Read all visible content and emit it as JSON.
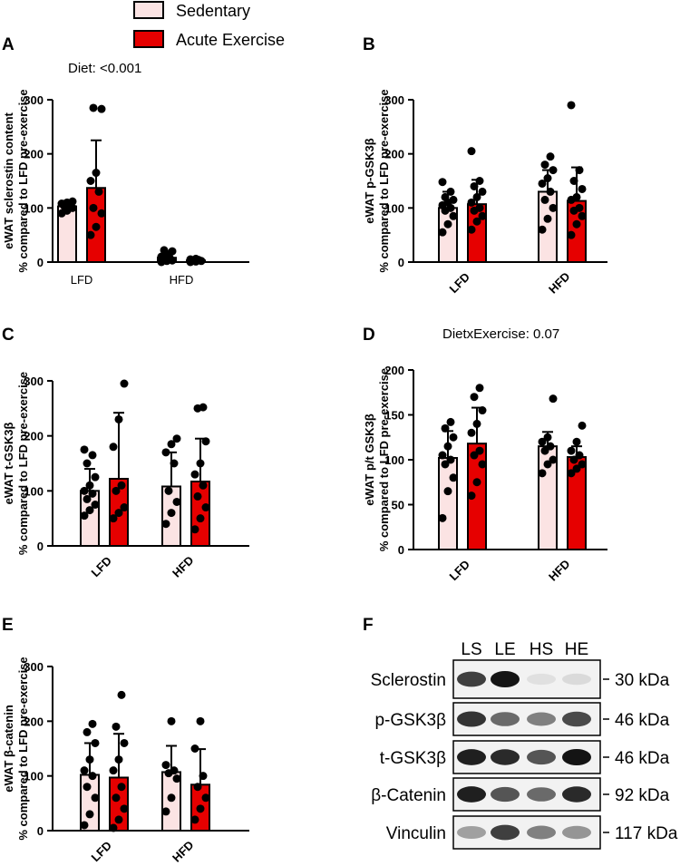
{
  "legend": {
    "items": [
      {
        "label": "Sedentary",
        "color": "#fbe3e3"
      },
      {
        "label": "Acute Exercise",
        "color": "#e60000"
      }
    ]
  },
  "colors": {
    "sedentary": "#fbe3e3",
    "exercise": "#e60000",
    "axis": "#000000"
  },
  "chart_data": [
    {
      "panel": "A",
      "type": "bar",
      "annotation": "Diet: <0.001",
      "ylabel_lines": [
        "eWAT sclerostin content",
        "% compared to LFD pre-exercise"
      ],
      "ylim": [
        0,
        300
      ],
      "yticks": [
        "0",
        "100",
        "200",
        "300"
      ],
      "categories": [
        "LFD",
        "HFD"
      ],
      "series": [
        {
          "name": "Sedentary",
          "values": [
            103,
            8
          ],
          "errors": [
            10,
            10
          ],
          "points": [
            [
              90,
              95,
              100,
              103,
              105,
              108,
              110,
              112
            ],
            [
              0,
              2,
              3,
              5,
              8,
              10,
              15,
              20,
              22
            ]
          ]
        },
        {
          "name": "Acute Exercise",
          "values": [
            137,
            3
          ],
          "errors": [
            88,
            3
          ],
          "points": [
            [
              50,
              65,
              90,
              100,
              130,
              150,
              165,
              283,
              285
            ],
            [
              0,
              1,
              2,
              3,
              4,
              5,
              6
            ]
          ]
        }
      ]
    },
    {
      "panel": "B",
      "type": "bar",
      "annotation": "",
      "ylabel_lines": [
        "eWAT p-GSK3β",
        "% compared to LFD pre-exercise"
      ],
      "ylim": [
        0,
        300
      ],
      "yticks": [
        "0",
        "100",
        "200",
        "300"
      ],
      "categories": [
        "LFD",
        "HFD"
      ],
      "series": [
        {
          "name": "Sedentary",
          "values": [
            100,
            130
          ],
          "errors": [
            30,
            40
          ],
          "points": [
            [
              55,
              70,
              85,
              95,
              100,
              105,
              110,
              115,
              120,
              130,
              148
            ],
            [
              60,
              80,
              100,
              115,
              130,
              145,
              155,
              170,
              180,
              195
            ]
          ]
        },
        {
          "name": "Acute Exercise",
          "values": [
            107,
            113
          ],
          "errors": [
            45,
            62
          ],
          "points": [
            [
              60,
              75,
              85,
              95,
              100,
              110,
              120,
              130,
              140,
              150,
              205
            ],
            [
              50,
              70,
              85,
              95,
              100,
              115,
              120,
              135,
              150,
              170,
              290
            ]
          ]
        }
      ]
    },
    {
      "panel": "C",
      "type": "bar",
      "annotation": "",
      "ylabel_lines": [
        "eWAT t-GSK3β",
        "% compared to LFD pre-exercise"
      ],
      "ylim": [
        0,
        300
      ],
      "yticks": [
        "0",
        "100",
        "200",
        "300"
      ],
      "categories": [
        "LFD",
        "HFD"
      ],
      "series": [
        {
          "name": "Sedentary",
          "values": [
            100,
            108
          ],
          "errors": [
            40,
            62
          ],
          "points": [
            [
              55,
              65,
              75,
              85,
              95,
              100,
              110,
              125,
              150,
              165,
              175
            ],
            [
              40,
              60,
              80,
              100,
              150,
              170,
              185,
              195
            ]
          ]
        },
        {
          "name": "Acute Exercise",
          "values": [
            122,
            117
          ],
          "errors": [
            120,
            78
          ],
          "points": [
            [
              50,
              60,
              70,
              100,
              110,
              180,
              230,
              295
            ],
            [
              30,
              50,
              70,
              90,
              110,
              130,
              150,
              190,
              250,
              252
            ]
          ]
        }
      ]
    },
    {
      "panel": "D",
      "type": "bar",
      "annotation": "DietxExercise: 0.07",
      "ylabel_lines": [
        "eWAT p/t GSK3β",
        "% compared to LFD pre-exercise"
      ],
      "ylim": [
        0,
        200
      ],
      "yticks": [
        "0",
        "50",
        "100",
        "150",
        "200"
      ],
      "categories": [
        "LFD",
        "HFD"
      ],
      "series": [
        {
          "name": "Sedentary",
          "values": [
            102,
            115
          ],
          "errors": [
            30,
            16
          ],
          "points": [
            [
              35,
              65,
              80,
              95,
              100,
              105,
              115,
              125,
              135,
              142
            ],
            [
              85,
              95,
              100,
              110,
              115,
              120,
              125,
              168
            ]
          ]
        },
        {
          "name": "Acute Exercise",
          "values": [
            118,
            103
          ],
          "errors": [
            40,
            12
          ],
          "points": [
            [
              60,
              75,
              95,
              105,
              110,
              130,
              140,
              155,
              170,
              180
            ],
            [
              85,
              90,
              95,
              100,
              105,
              110,
              120,
              138
            ]
          ]
        }
      ]
    },
    {
      "panel": "E",
      "type": "bar",
      "annotation": "",
      "ylabel_lines": [
        "eWAT β-catenin",
        "% compared to LFD pre-exercise"
      ],
      "ylim": [
        0,
        300
      ],
      "yticks": [
        "0",
        "100",
        "200",
        "300"
      ],
      "categories": [
        "LFD",
        "HFD"
      ],
      "series": [
        {
          "name": "Sedentary",
          "values": [
            102,
            107
          ],
          "errors": [
            58,
            48
          ],
          "points": [
            [
              10,
              30,
              60,
              80,
              100,
              110,
              130,
              160,
              180,
              195
            ],
            [
              35,
              60,
              95,
              105,
              110,
              120,
              200
            ]
          ]
        },
        {
          "name": "Acute Exercise",
          "values": [
            97,
            84
          ],
          "errors": [
            80,
            65
          ],
          "points": [
            [
              5,
              20,
              40,
              60,
              80,
              110,
              130,
              160,
              190,
              248
            ],
            [
              20,
              40,
              60,
              80,
              100,
              150,
              200
            ]
          ]
        }
      ]
    }
  ],
  "blot": {
    "panel": "F",
    "lanes": [
      "LS",
      "LE",
      "HS",
      "HE"
    ],
    "rows": [
      {
        "label": "Sclerostin",
        "kda": "30 kDa",
        "intensity": [
          0.8,
          1.0,
          0.05,
          0.08
        ]
      },
      {
        "label": "p-GSK3β",
        "kda": "46 kDa",
        "intensity": [
          0.85,
          0.6,
          0.5,
          0.75
        ]
      },
      {
        "label": "t-GSK3β",
        "kda": "46 kDa",
        "intensity": [
          0.95,
          0.9,
          0.7,
          1.0
        ]
      },
      {
        "label": "β-Catenin",
        "kda": "92 kDa",
        "intensity": [
          0.95,
          0.7,
          0.6,
          0.9
        ]
      },
      {
        "label": "Vinculin",
        "kda": "117 kDa",
        "intensity": [
          0.35,
          0.8,
          0.5,
          0.4
        ]
      }
    ]
  }
}
